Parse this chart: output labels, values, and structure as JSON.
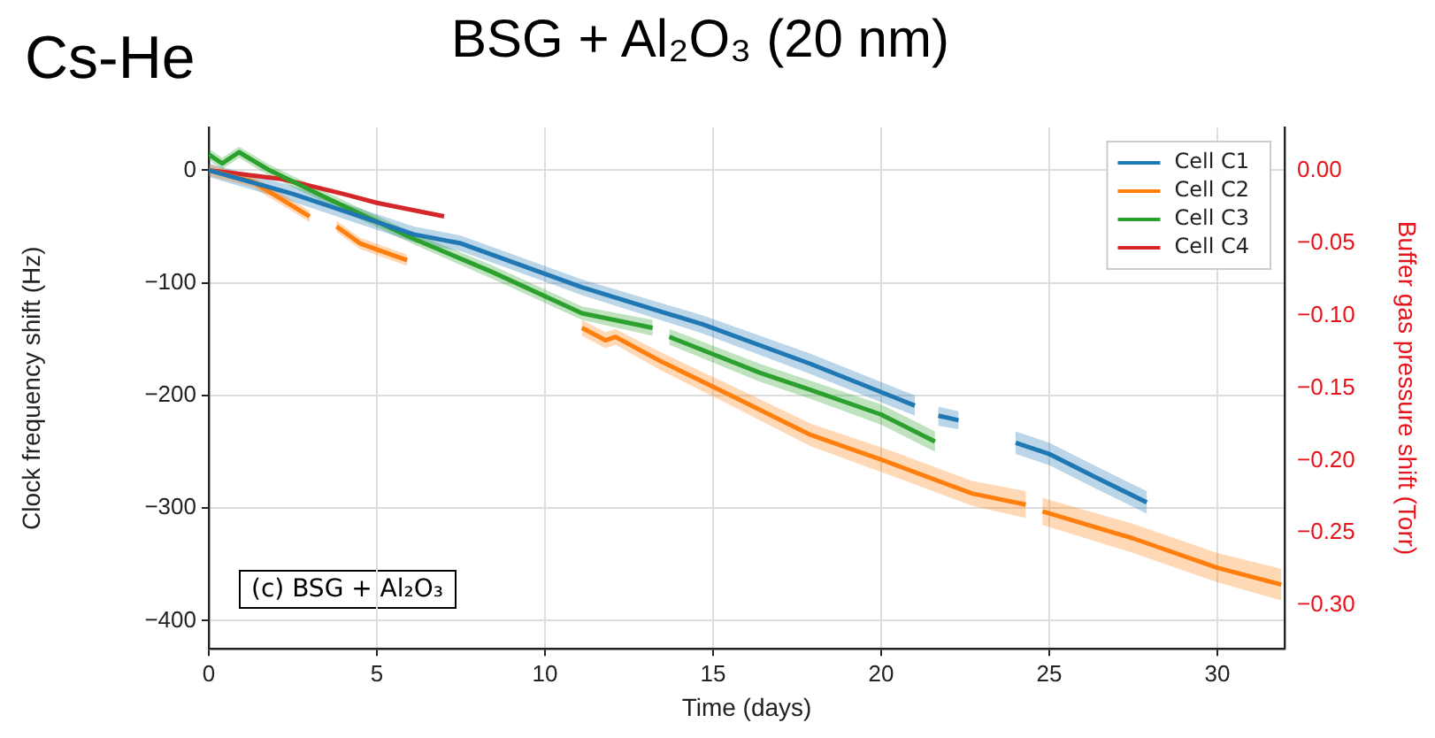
{
  "chart_data": {
    "type": "line",
    "title": "BSG + Al₂O₃ (20 nm)",
    "subtitle": "Cs-He",
    "xlabel": "Time (days)",
    "ylabel": "Clock frequency shift (Hz)",
    "y2label": "Buffer gas pressure shift (Torr)",
    "annotations": [
      "(c) BSG + Al₂O₃"
    ],
    "xlim": [
      0,
      32
    ],
    "xticks": [
      0,
      5,
      10,
      15,
      20,
      25,
      30
    ],
    "ylim": [
      -425,
      38
    ],
    "yticks": [
      {
        "value": -400,
        "label": "−400"
      },
      {
        "value": -300,
        "label": "−300"
      },
      {
        "value": -200,
        "label": "−200"
      },
      {
        "value": -100,
        "label": "−100"
      },
      0
    ],
    "y2lim": [
      -0.33,
      0.03
    ],
    "y2ticks": [
      {
        "value": -0.3,
        "label": "−0.30"
      },
      {
        "value": -0.25,
        "label": "−0.25"
      },
      {
        "value": -0.2,
        "label": "−0.20"
      },
      {
        "value": -0.15,
        "label": "−0.15"
      },
      {
        "value": -0.1,
        "label": "−0.10"
      },
      {
        "value": -0.05,
        "label": "−0.05"
      },
      {
        "value": 0,
        "label": "0.00"
      }
    ],
    "grid": true,
    "legend": "top right",
    "marker": "none",
    "line_style": "solid",
    "series": [
      {
        "name": "Cell C1",
        "color": "#1f77b4",
        "x": [
          0,
          2.5,
          6.1,
          7.5,
          11.1,
          14.7,
          17.9,
          21.0,
          21.4,
          21.7,
          22.3,
          23,
          24.0,
          25,
          26.4,
          27.9
        ],
        "values": [
          0,
          -21,
          -57,
          -65,
          -104,
          -137,
          -172,
          -209,
          null,
          -218,
          -222,
          null,
          -242,
          -252,
          -273,
          -295
        ],
        "lower": [
          -6,
          -28,
          -64,
          -72,
          -111,
          -145,
          -181,
          -218,
          null,
          -227,
          -230,
          null,
          -252,
          -262,
          -283,
          -305
        ],
        "upper": [
          6,
          -14,
          -50,
          -58,
          -97,
          -129,
          -163,
          -200,
          null,
          -210,
          -214,
          null,
          -232,
          -242,
          -263,
          -285
        ]
      },
      {
        "name": "Cell C2",
        "color": "#ff7f0e",
        "x": [
          0,
          1.3,
          3.0,
          3.4,
          3.8,
          4.5,
          5.9,
          8,
          11.1,
          11.8,
          12.1,
          13.4,
          15.6,
          17.9,
          20.0,
          22.7,
          24.3,
          24.5,
          24.8,
          27.5,
          30,
          31.9
        ],
        "values": [
          0,
          -10,
          -41,
          null,
          -50,
          -65,
          -80,
          null,
          -140,
          -151,
          -148,
          -169,
          -201,
          -235,
          -257,
          -287,
          -297,
          null,
          -303,
          -327,
          -353,
          -368
        ],
        "lower": [
          -5,
          -15,
          -46,
          null,
          -55,
          -70,
          -85,
          null,
          -147,
          -158,
          -155,
          -177,
          -210,
          -245,
          -268,
          -298,
          -309,
          null,
          -315,
          -340,
          -366,
          -382
        ],
        "upper": [
          5,
          -5,
          -36,
          null,
          -45,
          -60,
          -75,
          null,
          -133,
          -144,
          -141,
          -161,
          -192,
          -225,
          -246,
          -276,
          -285,
          null,
          -291,
          -314,
          -340,
          -354
        ]
      },
      {
        "name": "Cell C3",
        "color": "#2ca02c",
        "x": [
          0,
          0.4,
          0.9,
          1.8,
          3.6,
          6.1,
          8.4,
          11.1,
          13.2,
          13.45,
          13.7,
          16.4,
          17.9,
          20.0,
          21.6
        ],
        "values": [
          14,
          6,
          16,
          0,
          -26,
          -61,
          -90,
          -127,
          -140,
          null,
          -148,
          -180,
          -195,
          -217,
          -241
        ],
        "lower": [
          9,
          1,
          11,
          -5,
          -31,
          -66,
          -96,
          -133,
          -147,
          null,
          -155,
          -188,
          -203,
          -226,
          -250
        ],
        "upper": [
          19,
          11,
          21,
          5,
          -21,
          -56,
          -84,
          -121,
          -133,
          null,
          -141,
          -172,
          -187,
          -208,
          -232
        ]
      },
      {
        "name": "Cell C4",
        "color": "#d62728",
        "x": [
          0,
          2.2,
          4.0,
          5.0,
          7.0
        ],
        "values": [
          0,
          -8,
          -21,
          -29,
          -41
        ]
      }
    ]
  }
}
